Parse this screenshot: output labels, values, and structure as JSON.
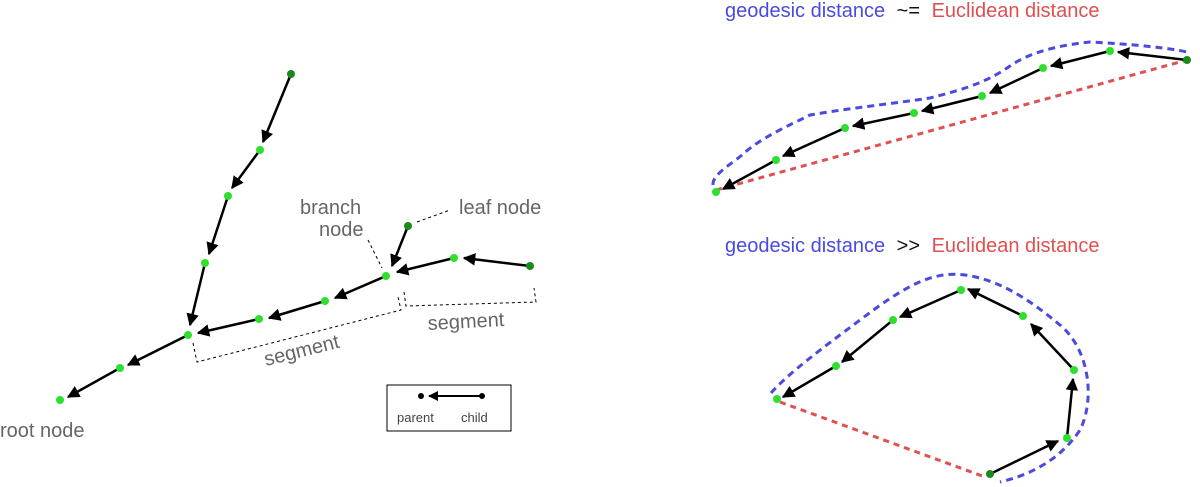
{
  "labels": {
    "root_node": "root node",
    "branch_line1": "branch",
    "branch_line2": "node",
    "leaf_node": "leaf node",
    "segment_1": "segment",
    "segment_2": "segment"
  },
  "legend": {
    "parent": "parent",
    "child": "child"
  },
  "top_caption": {
    "geo": "geodesic distance",
    "op": "~=",
    "euc": "Euclidean distance"
  },
  "bottom_caption": {
    "geo": "geodesic distance",
    "op": ">>",
    "euc": "Euclidean distance"
  },
  "colors": {
    "node_light": "#2ee02e",
    "node_dark": "#1a8a1a",
    "geodesic": "#4a4ae0",
    "euclidean": "#e05050"
  }
}
